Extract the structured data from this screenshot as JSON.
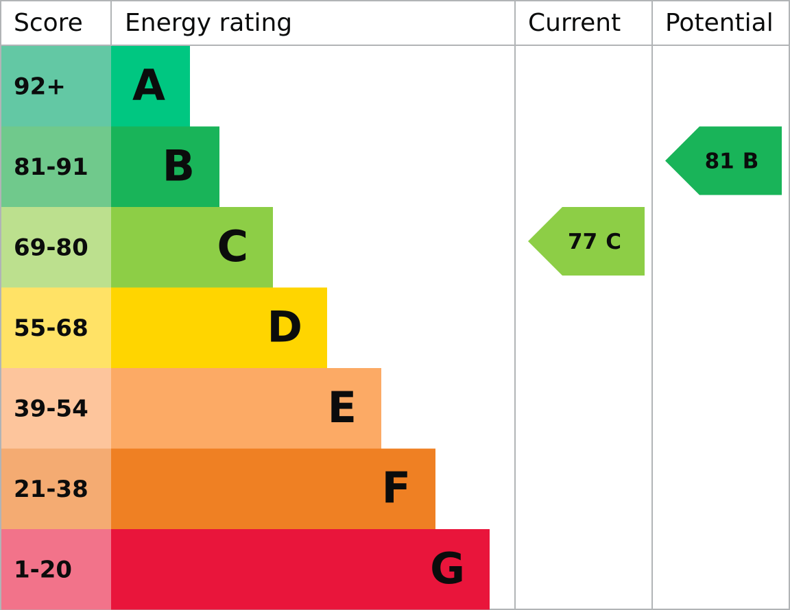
{
  "header": {
    "score": "Score",
    "energy_rating": "Energy rating",
    "current": "Current",
    "potential": "Potential"
  },
  "rows": [
    {
      "score": "92+",
      "rating": "A",
      "color": "#00c781",
      "score_color": "#63c8a4"
    },
    {
      "score": "81-91",
      "rating": "B",
      "color": "#19b459",
      "score_color": "#70c98c"
    },
    {
      "score": "69-80",
      "rating": "C",
      "color": "#8dce46",
      "score_color": "#bce08e"
    },
    {
      "score": "55-68",
      "rating": "D",
      "color": "#ffd500",
      "score_color": "#ffe266"
    },
    {
      "score": "39-54",
      "rating": "E",
      "color": "#fcaa65",
      "score_color": "#fdc59c"
    },
    {
      "score": "21-38",
      "rating": "F",
      "color": "#ef8023",
      "score_color": "#f4ab72"
    },
    {
      "score": "1-20",
      "rating": "G",
      "color": "#e9153b",
      "score_color": "#f2738a"
    }
  ],
  "current": {
    "score": 77,
    "rating": "C"
  },
  "potential": {
    "score": 81,
    "rating": "B"
  }
}
